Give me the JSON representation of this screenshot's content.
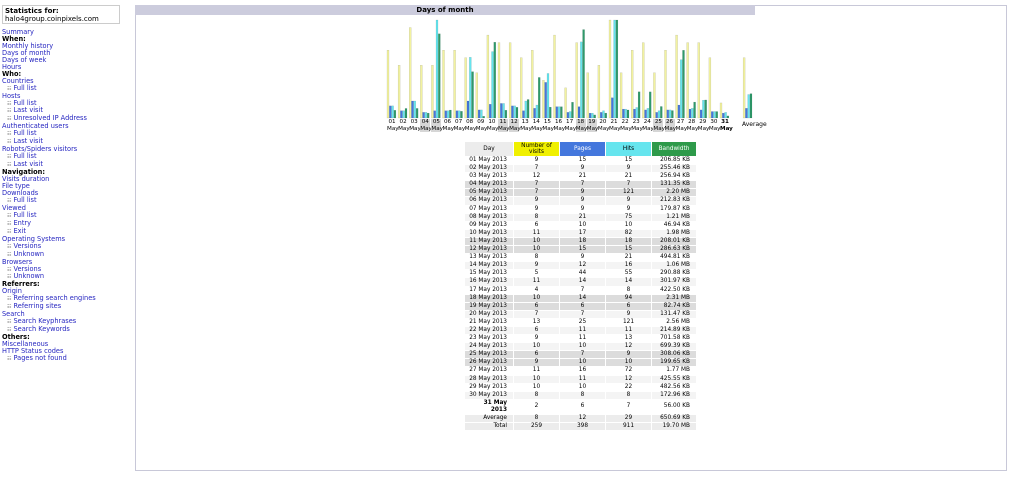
{
  "stats": {
    "label": "Statistics for:",
    "host": "halo4group.coinpixels.com"
  },
  "menu": [
    {
      "t": "lnk",
      "label": "Summary"
    },
    {
      "t": "hdr",
      "label": "When:"
    },
    {
      "t": "lnk",
      "label": "Monthly history"
    },
    {
      "t": "lnk",
      "label": "Days of month"
    },
    {
      "t": "lnk",
      "label": "Days of week"
    },
    {
      "t": "lnk",
      "label": "Hours"
    },
    {
      "t": "hdr",
      "label": "Who:"
    },
    {
      "t": "lnk",
      "label": "Countries"
    },
    {
      "t": "sub",
      "label": "Full list"
    },
    {
      "t": "lnk",
      "label": "Hosts"
    },
    {
      "t": "sub",
      "label": "Full list"
    },
    {
      "t": "sub",
      "label": "Last visit"
    },
    {
      "t": "sub",
      "label": "Unresolved IP Address"
    },
    {
      "t": "lnk",
      "label": "Authenticated users"
    },
    {
      "t": "sub",
      "label": "Full list"
    },
    {
      "t": "sub",
      "label": "Last visit"
    },
    {
      "t": "lnk",
      "label": "Robots/Spiders visitors"
    },
    {
      "t": "sub",
      "label": "Full list"
    },
    {
      "t": "sub",
      "label": "Last visit"
    },
    {
      "t": "hdr",
      "label": "Navigation:"
    },
    {
      "t": "lnk",
      "label": "Visits duration"
    },
    {
      "t": "lnk",
      "label": "File type"
    },
    {
      "t": "lnk",
      "label": "Downloads"
    },
    {
      "t": "sub",
      "label": "Full list"
    },
    {
      "t": "lnk",
      "label": "Viewed"
    },
    {
      "t": "sub",
      "label": "Full list"
    },
    {
      "t": "sub",
      "label": "Entry"
    },
    {
      "t": "sub",
      "label": "Exit"
    },
    {
      "t": "lnk",
      "label": "Operating Systems"
    },
    {
      "t": "sub",
      "label": "Versions"
    },
    {
      "t": "sub",
      "label": "Unknown"
    },
    {
      "t": "lnk",
      "label": "Browsers"
    },
    {
      "t": "sub",
      "label": "Versions"
    },
    {
      "t": "sub",
      "label": "Unknown"
    },
    {
      "t": "hdr",
      "label": "Referrers:"
    },
    {
      "t": "lnk",
      "label": "Origin"
    },
    {
      "t": "sub",
      "label": "Referring search engines"
    },
    {
      "t": "sub",
      "label": "Referring sites"
    },
    {
      "t": "lnk",
      "label": "Search"
    },
    {
      "t": "sub",
      "label": "Search Keyphrases"
    },
    {
      "t": "sub",
      "label": "Search Keywords"
    },
    {
      "t": "hdr",
      "label": "Others:"
    },
    {
      "t": "lnk",
      "label": "Miscellaneous"
    },
    {
      "t": "lnk",
      "label": "HTTP Status codes"
    },
    {
      "t": "sub",
      "label": "Pages not found"
    }
  ],
  "section_title": "Days of month",
  "chart_data": {
    "type": "bar",
    "colors": {
      "visits": "#f2f2a0",
      "pages": "#4477dd",
      "hits": "#66e5ee",
      "bandwidth": "#2e9a6a"
    },
    "days": [
      {
        "n": "01",
        "m": "May",
        "we": false
      },
      {
        "n": "02",
        "m": "May",
        "we": false
      },
      {
        "n": "03",
        "m": "May",
        "we": false
      },
      {
        "n": "04",
        "m": "May",
        "we": true
      },
      {
        "n": "05",
        "m": "May",
        "we": true
      },
      {
        "n": "06",
        "m": "May",
        "we": false
      },
      {
        "n": "07",
        "m": "May",
        "we": false
      },
      {
        "n": "08",
        "m": "May",
        "we": false
      },
      {
        "n": "09",
        "m": "May",
        "we": false
      },
      {
        "n": "10",
        "m": "May",
        "we": false
      },
      {
        "n": "11",
        "m": "May",
        "we": true
      },
      {
        "n": "12",
        "m": "May",
        "we": true
      },
      {
        "n": "13",
        "m": "May",
        "we": false
      },
      {
        "n": "14",
        "m": "May",
        "we": false
      },
      {
        "n": "15",
        "m": "May",
        "we": false
      },
      {
        "n": "16",
        "m": "May",
        "we": false
      },
      {
        "n": "17",
        "m": "May",
        "we": false
      },
      {
        "n": "18",
        "m": "May",
        "we": true
      },
      {
        "n": "19",
        "m": "May",
        "we": true
      },
      {
        "n": "20",
        "m": "May",
        "we": false
      },
      {
        "n": "21",
        "m": "May",
        "we": false
      },
      {
        "n": "22",
        "m": "May",
        "we": false
      },
      {
        "n": "23",
        "m": "May",
        "we": false
      },
      {
        "n": "24",
        "m": "May",
        "we": false
      },
      {
        "n": "25",
        "m": "May",
        "we": true
      },
      {
        "n": "26",
        "m": "May",
        "we": true
      },
      {
        "n": "27",
        "m": "May",
        "we": false
      },
      {
        "n": "28",
        "m": "May",
        "we": false
      },
      {
        "n": "29",
        "m": "May",
        "we": false
      },
      {
        "n": "30",
        "m": "May",
        "we": false
      },
      {
        "n": "31",
        "m": "May",
        "we": false,
        "bold": true
      }
    ],
    "visits": [
      9,
      7,
      12,
      7,
      7,
      9,
      9,
      8,
      6,
      11,
      10,
      10,
      8,
      9,
      5,
      11,
      4,
      10,
      6,
      7,
      13,
      6,
      9,
      10,
      6,
      9,
      11,
      10,
      10,
      8,
      2
    ],
    "pages": [
      15,
      9,
      21,
      7,
      9,
      9,
      9,
      21,
      10,
      17,
      18,
      15,
      9,
      12,
      44,
      14,
      7,
      14,
      6,
      7,
      25,
      11,
      11,
      10,
      7,
      10,
      16,
      11,
      10,
      8,
      6
    ],
    "hits": [
      15,
      9,
      21,
      7,
      121,
      9,
      9,
      75,
      10,
      82,
      18,
      15,
      21,
      16,
      55,
      14,
      8,
      94,
      6,
      9,
      121,
      11,
      13,
      12,
      9,
      10,
      72,
      12,
      22,
      8,
      7
    ],
    "bandwidth_kb": [
      206.85,
      255.46,
      256.94,
      131.35,
      2252.8,
      212.83,
      179.87,
      1239.04,
      46.94,
      2027.52,
      208.01,
      286.63,
      494.81,
      1085.44,
      290.88,
      301.97,
      422.5,
      2365.44,
      82.74,
      131.47,
      2621.44,
      214.89,
      701.58,
      699.39,
      308.06,
      199.65,
      1812.48,
      425.55,
      482.56,
      172.96,
      56.0
    ],
    "average": {
      "visits": 8,
      "pages": 12,
      "hits": 29,
      "bandwidth_kb": 650.69
    },
    "average_label": "Average"
  },
  "table": {
    "headers": {
      "day": "Day",
      "visits": "Number of visits",
      "pages": "Pages",
      "hits": "Hits",
      "bandwidth": "Bandwidth"
    },
    "header_colors": {
      "visits": "#f0f000",
      "pages": "#4477dd",
      "hits": "#66e5ee",
      "bandwidth": "#2e9a4a"
    },
    "rows": [
      {
        "day": "01 May 2013",
        "v": "9",
        "p": "15",
        "h": "15",
        "b": "206.85 KB",
        "we": false
      },
      {
        "day": "02 May 2013",
        "v": "7",
        "p": "9",
        "h": "9",
        "b": "255.46 KB",
        "we": false
      },
      {
        "day": "03 May 2013",
        "v": "12",
        "p": "21",
        "h": "21",
        "b": "256.94 KB",
        "we": false
      },
      {
        "day": "04 May 2013",
        "v": "7",
        "p": "7",
        "h": "7",
        "b": "131.35 KB",
        "we": true
      },
      {
        "day": "05 May 2013",
        "v": "7",
        "p": "9",
        "h": "121",
        "b": "2.20 MB",
        "we": true
      },
      {
        "day": "06 May 2013",
        "v": "9",
        "p": "9",
        "h": "9",
        "b": "212.83 KB",
        "we": false
      },
      {
        "day": "07 May 2013",
        "v": "9",
        "p": "9",
        "h": "9",
        "b": "179.87 KB",
        "we": false
      },
      {
        "day": "08 May 2013",
        "v": "8",
        "p": "21",
        "h": "75",
        "b": "1.21 MB",
        "we": false
      },
      {
        "day": "09 May 2013",
        "v": "6",
        "p": "10",
        "h": "10",
        "b": "46.94 KB",
        "we": false
      },
      {
        "day": "10 May 2013",
        "v": "11",
        "p": "17",
        "h": "82",
        "b": "1.98 MB",
        "we": false
      },
      {
        "day": "11 May 2013",
        "v": "10",
        "p": "18",
        "h": "18",
        "b": "208.01 KB",
        "we": true
      },
      {
        "day": "12 May 2013",
        "v": "10",
        "p": "15",
        "h": "15",
        "b": "286.63 KB",
        "we": true
      },
      {
        "day": "13 May 2013",
        "v": "8",
        "p": "9",
        "h": "21",
        "b": "494.81 KB",
        "we": false
      },
      {
        "day": "14 May 2013",
        "v": "9",
        "p": "12",
        "h": "16",
        "b": "1.06 MB",
        "we": false
      },
      {
        "day": "15 May 2013",
        "v": "5",
        "p": "44",
        "h": "55",
        "b": "290.88 KB",
        "we": false
      },
      {
        "day": "16 May 2013",
        "v": "11",
        "p": "14",
        "h": "14",
        "b": "301.97 KB",
        "we": false
      },
      {
        "day": "17 May 2013",
        "v": "4",
        "p": "7",
        "h": "8",
        "b": "422.50 KB",
        "we": false
      },
      {
        "day": "18 May 2013",
        "v": "10",
        "p": "14",
        "h": "94",
        "b": "2.31 MB",
        "we": true
      },
      {
        "day": "19 May 2013",
        "v": "6",
        "p": "6",
        "h": "6",
        "b": "82.74 KB",
        "we": true
      },
      {
        "day": "20 May 2013",
        "v": "7",
        "p": "7",
        "h": "9",
        "b": "131.47 KB",
        "we": false
      },
      {
        "day": "21 May 2013",
        "v": "13",
        "p": "25",
        "h": "121",
        "b": "2.56 MB",
        "we": false
      },
      {
        "day": "22 May 2013",
        "v": "6",
        "p": "11",
        "h": "11",
        "b": "214.89 KB",
        "we": false
      },
      {
        "day": "23 May 2013",
        "v": "9",
        "p": "11",
        "h": "13",
        "b": "701.58 KB",
        "we": false
      },
      {
        "day": "24 May 2013",
        "v": "10",
        "p": "10",
        "h": "12",
        "b": "699.39 KB",
        "we": false
      },
      {
        "day": "25 May 2013",
        "v": "6",
        "p": "7",
        "h": "9",
        "b": "308.06 KB",
        "we": true
      },
      {
        "day": "26 May 2013",
        "v": "9",
        "p": "10",
        "h": "10",
        "b": "199.65 KB",
        "we": true
      },
      {
        "day": "27 May 2013",
        "v": "11",
        "p": "16",
        "h": "72",
        "b": "1.77 MB",
        "we": false
      },
      {
        "day": "28 May 2013",
        "v": "10",
        "p": "11",
        "h": "12",
        "b": "425.55 KB",
        "we": false
      },
      {
        "day": "29 May 2013",
        "v": "10",
        "p": "10",
        "h": "22",
        "b": "482.56 KB",
        "we": false
      },
      {
        "day": "30 May 2013",
        "v": "8",
        "p": "8",
        "h": "8",
        "b": "172.96 KB",
        "we": false
      },
      {
        "day": "31 May 2013",
        "v": "2",
        "p": "6",
        "h": "7",
        "b": "56.00 KB",
        "we": false,
        "today": true
      }
    ],
    "average": {
      "day": "Average",
      "v": "8",
      "p": "12",
      "h": "29",
      "b": "650.69 KB"
    },
    "total": {
      "day": "Total",
      "v": "259",
      "p": "398",
      "h": "911",
      "b": "19.70 MB"
    }
  }
}
